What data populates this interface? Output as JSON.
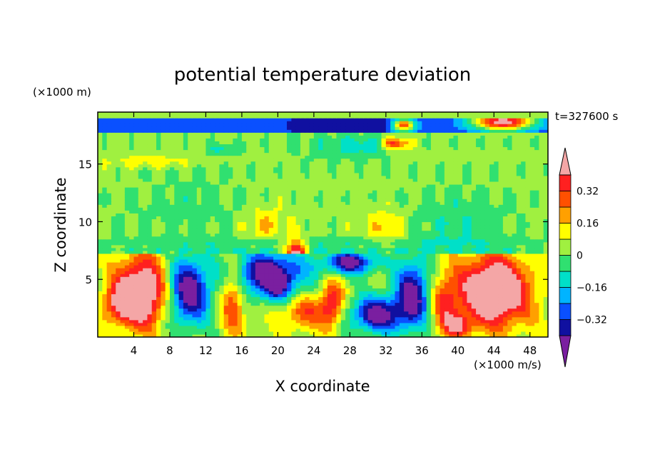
{
  "chart_data": {
    "type": "heatmap",
    "title": "potential temperature deviation",
    "xlabel": "X coordinate",
    "ylabel": "Z coordinate",
    "x_units": "(×1000 m/s)",
    "y_units": "(×1000 m)",
    "time_label": "t=327600 s",
    "xlim": [
      0,
      50
    ],
    "ylim": [
      0,
      19.5
    ],
    "x_ticks": [
      4,
      8,
      12,
      16,
      20,
      24,
      28,
      32,
      36,
      40,
      44,
      48
    ],
    "y_ticks": [
      5,
      10,
      15
    ],
    "colorbar": {
      "levels": [
        -0.4,
        -0.32,
        -0.24,
        -0.16,
        -0.08,
        0,
        0.08,
        0.16,
        0.24,
        0.32,
        0.4
      ],
      "tick_labels": [
        "0.32",
        "0.16",
        "0",
        "−0.16",
        "−0.32"
      ],
      "tick_values": [
        0.32,
        0.16,
        0,
        -0.16,
        -0.32
      ],
      "colors": [
        "#7a1fa0",
        "#1010a0",
        "#0a50ff",
        "#00b4ff",
        "#00e0c8",
        "#30e070",
        "#a0f040",
        "#ffff00",
        "#ffa000",
        "#ff5000",
        "#ff2020",
        "#f4a6a6"
      ]
    }
  }
}
